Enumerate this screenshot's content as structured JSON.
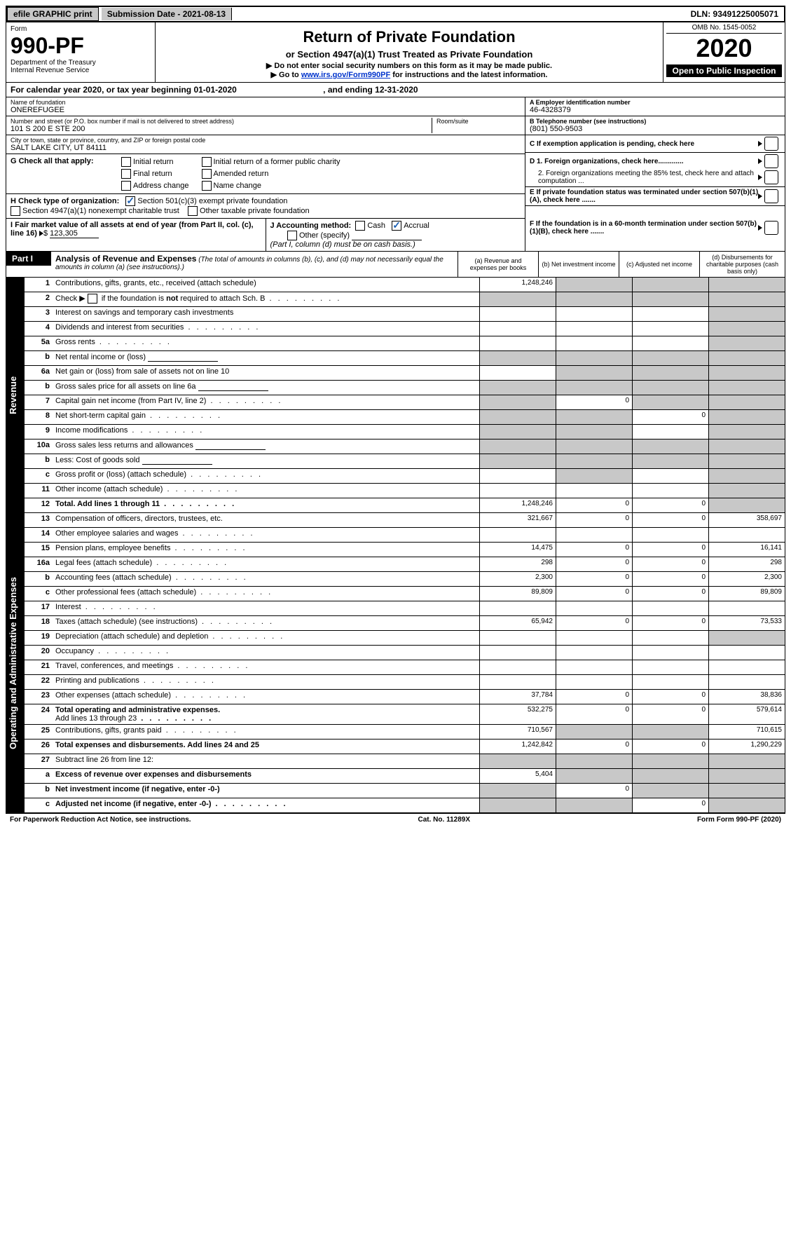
{
  "topbar": {
    "efile": "efile GRAPHIC print",
    "submission": "Submission Date - 2021-08-13",
    "dln": "DLN: 93491225005071"
  },
  "header": {
    "form_word": "Form",
    "form_no": "990-PF",
    "dept": "Department of the Treasury",
    "irs": "Internal Revenue Service",
    "title": "Return of Private Foundation",
    "subtitle": "or Section 4947(a)(1) Trust Treated as Private Foundation",
    "note1": "▶ Do not enter social security numbers on this form as it may be made public.",
    "note2_pre": "▶ Go to ",
    "note2_link": "www.irs.gov/Form990PF",
    "note2_post": " for instructions and the latest information.",
    "omb": "OMB No. 1545-0052",
    "year": "2020",
    "open": "Open to Public Inspection"
  },
  "calyear": "For calendar year 2020, or tax year beginning 01-01-2020",
  "calyear_end": ", and ending 12-31-2020",
  "foundation": {
    "name_label": "Name of foundation",
    "name": "ONEREFUGEE",
    "addr_label": "Number and street (or P.O. box number if mail is not delivered to street address)",
    "addr": "101 S 200 E STE 200",
    "room_label": "Room/suite",
    "city_label": "City or town, state or province, country, and ZIP or foreign postal code",
    "city": "SALT LAKE CITY, UT  84111"
  },
  "right_info": {
    "a": "A Employer identification number",
    "ein": "46-4328379",
    "b": "B Telephone number (see instructions)",
    "phone": "(801) 550-9503",
    "c": "C If exemption application is pending, check here",
    "d1": "D 1. Foreign organizations, check here.............",
    "d2": "2. Foreign organizations meeting the 85% test, check here and attach computation ...",
    "e": "E If private foundation status was terminated under section 507(b)(1)(A), check here .......",
    "f": "F If the foundation is in a 60-month termination under section 507(b)(1)(B), check here ......."
  },
  "g": {
    "lead": "G Check all that apply:",
    "opts": {
      "initial": "Initial return",
      "initial_former": "Initial return of a former public charity",
      "final": "Final return",
      "amended": "Amended return",
      "addr_change": "Address change",
      "name_change": "Name change"
    }
  },
  "h": {
    "lead": "H Check type of organization:",
    "sec501": "Section 501(c)(3) exempt private foundation",
    "sec4947": "Section 4947(a)(1) nonexempt charitable trust",
    "other_tax": "Other taxable private foundation"
  },
  "i": {
    "lead": "I Fair market value of all assets at end of year (from Part II, col. (c), line 16)",
    "amount": "123,305"
  },
  "j": {
    "lead": "J Accounting method:",
    "cash": "Cash",
    "accrual": "Accrual",
    "other": "Other (specify)",
    "note": "(Part I, column (d) must be on cash basis.)"
  },
  "part1": {
    "tag": "Part I",
    "title": "Analysis of Revenue and Expenses",
    "sub": "(The total of amounts in columns (b), (c), and (d) may not necessarily equal the amounts in column (a) (see instructions).)",
    "cols": {
      "a": "(a) Revenue and expenses per books",
      "b": "(b) Net investment income",
      "c": "(c) Adjusted net income",
      "d": "(d) Disbursements for charitable purposes (cash basis only)"
    }
  },
  "sections": {
    "revenue": "Revenue",
    "expenses": "Operating and Administrative Expenses"
  },
  "lines": {
    "1": {
      "n": "1",
      "d": "Contributions, gifts, grants, etc., received (attach schedule)",
      "a": "1,248,246"
    },
    "2": {
      "n": "2",
      "d": "Check ▶ ",
      "d2": " if the foundation is not required to attach Sch. B"
    },
    "3": {
      "n": "3",
      "d": "Interest on savings and temporary cash investments"
    },
    "4": {
      "n": "4",
      "d": "Dividends and interest from securities"
    },
    "5a": {
      "n": "5a",
      "d": "Gross rents"
    },
    "5b": {
      "n": "b",
      "d": "Net rental income or (loss)"
    },
    "6a": {
      "n": "6a",
      "d": "Net gain or (loss) from sale of assets not on line 10"
    },
    "6b": {
      "n": "b",
      "d": "Gross sales price for all assets on line 6a"
    },
    "7": {
      "n": "7",
      "d": "Capital gain net income (from Part IV, line 2)",
      "b": "0"
    },
    "8": {
      "n": "8",
      "d": "Net short-term capital gain",
      "c": "0"
    },
    "9": {
      "n": "9",
      "d": "Income modifications"
    },
    "10a": {
      "n": "10a",
      "d": "Gross sales less returns and allowances"
    },
    "10b": {
      "n": "b",
      "d": "Less: Cost of goods sold"
    },
    "10c": {
      "n": "c",
      "d": "Gross profit or (loss) (attach schedule)"
    },
    "11": {
      "n": "11",
      "d": "Other income (attach schedule)"
    },
    "12": {
      "n": "12",
      "d": "Total. Add lines 1 through 11",
      "a": "1,248,246",
      "b": "0",
      "c": "0"
    },
    "13": {
      "n": "13",
      "d": "Compensation of officers, directors, trustees, etc.",
      "a": "321,667",
      "b": "0",
      "c": "0",
      "dd": "358,697"
    },
    "14": {
      "n": "14",
      "d": "Other employee salaries and wages"
    },
    "15": {
      "n": "15",
      "d": "Pension plans, employee benefits",
      "a": "14,475",
      "b": "0",
      "c": "0",
      "dd": "16,141"
    },
    "16a": {
      "n": "16a",
      "d": "Legal fees (attach schedule)",
      "a": "298",
      "b": "0",
      "c": "0",
      "dd": "298"
    },
    "16b": {
      "n": "b",
      "d": "Accounting fees (attach schedule)",
      "a": "2,300",
      "b": "0",
      "c": "0",
      "dd": "2,300"
    },
    "16c": {
      "n": "c",
      "d": "Other professional fees (attach schedule)",
      "a": "89,809",
      "b": "0",
      "c": "0",
      "dd": "89,809"
    },
    "17": {
      "n": "17",
      "d": "Interest"
    },
    "18": {
      "n": "18",
      "d": "Taxes (attach schedule) (see instructions)",
      "a": "65,942",
      "b": "0",
      "c": "0",
      "dd": "73,533"
    },
    "19": {
      "n": "19",
      "d": "Depreciation (attach schedule) and depletion"
    },
    "20": {
      "n": "20",
      "d": "Occupancy"
    },
    "21": {
      "n": "21",
      "d": "Travel, conferences, and meetings"
    },
    "22": {
      "n": "22",
      "d": "Printing and publications"
    },
    "23": {
      "n": "23",
      "d": "Other expenses (attach schedule)",
      "a": "37,784",
      "b": "0",
      "c": "0",
      "dd": "38,836"
    },
    "24": {
      "n": "24",
      "d": "Total operating and administrative expenses.",
      "d2": "Add lines 13 through 23",
      "a": "532,275",
      "b": "0",
      "c": "0",
      "dd": "579,614"
    },
    "25": {
      "n": "25",
      "d": "Contributions, gifts, grants paid",
      "a": "710,567",
      "dd": "710,615"
    },
    "26": {
      "n": "26",
      "d": "Total expenses and disbursements. Add lines 24 and 25",
      "a": "1,242,842",
      "b": "0",
      "c": "0",
      "dd": "1,290,229"
    },
    "27": {
      "n": "27",
      "d": "Subtract line 26 from line 12:"
    },
    "27a": {
      "n": "a",
      "d": "Excess of revenue over expenses and disbursements",
      "a": "5,404"
    },
    "27b": {
      "n": "b",
      "d": "Net investment income (if negative, enter -0-)",
      "b": "0"
    },
    "27c": {
      "n": "c",
      "d": "Adjusted net income (if negative, enter -0-)",
      "c": "0"
    }
  },
  "footer": {
    "pra": "For Paperwork Reduction Act Notice, see instructions.",
    "cat": "Cat. No. 11289X",
    "form": "Form 990-PF (2020)"
  },
  "widths": {
    "col_a": 106,
    "col_b": 106,
    "col_c": 106,
    "col_d": 113
  },
  "colors": {
    "shade": "#c8c8c8",
    "link": "#0033cc",
    "check": "#1a5fb4"
  }
}
